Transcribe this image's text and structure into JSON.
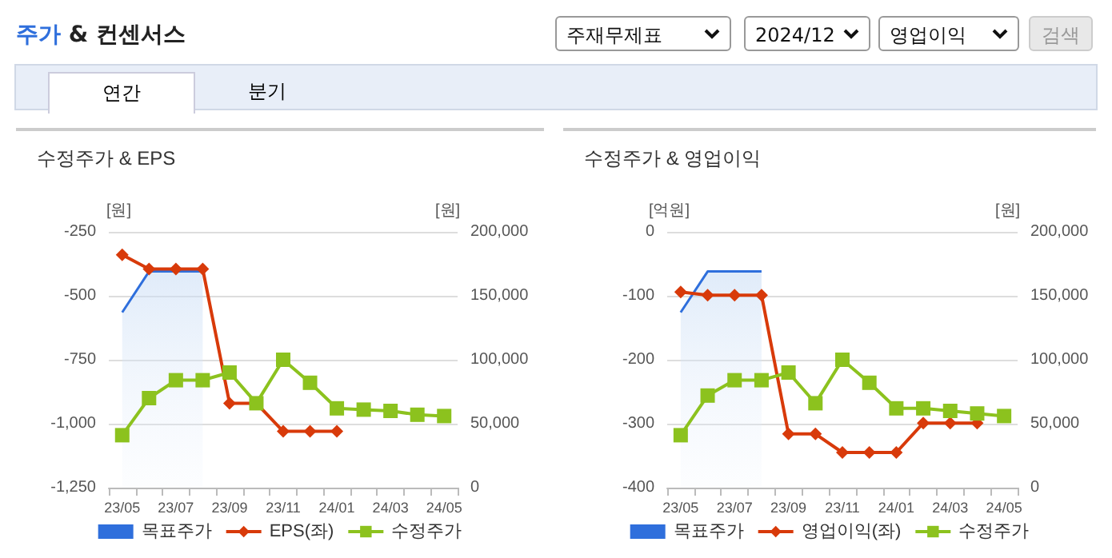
{
  "chart_data": [
    {
      "type": "line",
      "title": "수정주가 & EPS",
      "ylabel": "[원]",
      "y2label": "[원]",
      "annotations": [
        "주가 & 컨센서스",
        "주재무제표",
        "2024/12",
        "영업이익",
        "검색",
        "연간",
        "분기"
      ],
      "categories": [
        "23/05",
        null,
        "23/07",
        null,
        "23/09",
        null,
        "23/11",
        null,
        "24/01",
        null,
        "24/03",
        null,
        "24/05"
      ],
      "series": [
        {
          "name": "목표주가",
          "type": "area",
          "axis": "y2",
          "color": "#2f6fdc",
          "values": [
            137000,
            169000,
            169000,
            169000,
            null,
            null,
            null,
            null,
            null,
            null,
            null,
            null,
            null
          ]
        },
        {
          "name": "EPS(좌)",
          "marker": "diamond",
          "color": "#d83a0a",
          "values": [
            -340,
            -395,
            -395,
            -395,
            -920,
            -920,
            -1030,
            -1030,
            -1030,
            null,
            null,
            null,
            null
          ]
        },
        {
          "name": "수정주가",
          "marker": "square",
          "axis": "y2",
          "color": "#8cc21e",
          "values": [
            41000,
            70000,
            84000,
            84000,
            90000,
            66000,
            100000,
            82000,
            62000,
            61000,
            60000,
            57000,
            56000
          ]
        }
      ],
      "ylim": [
        -1250,
        -250
      ],
      "yticks": [
        {
          "value": -1250,
          "label": "-1,250"
        },
        {
          "value": -1000,
          "label": "-1,000"
        },
        -750,
        -500,
        -250
      ],
      "y2lim": [
        0,
        200000
      ],
      "y2ticks": [
        0,
        {
          "value": 50000,
          "label": "50,000"
        },
        {
          "value": 100000,
          "label": "100,000"
        },
        {
          "value": 150000,
          "label": "150,000"
        },
        {
          "value": 200000,
          "label": "200,000"
        }
      ],
      "grid": "y",
      "legend": "bottom"
    },
    {
      "type": "line",
      "title": "수정주가 & 영업이익",
      "ylabel": "[억원]",
      "y2label": "[원]",
      "categories": [
        "23/05",
        null,
        "23/07",
        null,
        "23/09",
        null,
        "23/11",
        null,
        "24/01",
        null,
        "24/03",
        null,
        "24/05"
      ],
      "series": [
        {
          "name": "목표주가",
          "type": "area",
          "axis": "y2",
          "color": "#2f6fdc",
          "values": [
            137000,
            169000,
            169000,
            169000,
            null,
            null,
            null,
            null,
            null,
            null,
            null,
            null,
            null
          ]
        },
        {
          "name": "영업이익(좌)",
          "marker": "diamond",
          "color": "#d83a0a",
          "values": [
            -94,
            -99,
            -99,
            -99,
            -316,
            -316,
            -345,
            -345,
            -345,
            -299,
            -299,
            -299,
            null
          ]
        },
        {
          "name": "수정주가",
          "marker": "square",
          "axis": "y2",
          "color": "#8cc21e",
          "values": [
            41000,
            72000,
            84000,
            84000,
            90000,
            66000,
            100000,
            82000,
            62000,
            62000,
            60000,
            58000,
            56000
          ]
        }
      ],
      "ylim": [
        -400,
        0
      ],
      "yticks": [
        -400,
        -300,
        -200,
        -100,
        0
      ],
      "y2lim": [
        0,
        200000
      ],
      "y2ticks": [
        0,
        {
          "value": 50000,
          "label": "50,000"
        },
        {
          "value": 100000,
          "label": "100,000"
        },
        {
          "value": 150000,
          "label": "150,000"
        },
        {
          "value": 200000,
          "label": "200,000"
        }
      ],
      "grid": "y",
      "legend": "bottom"
    }
  ]
}
